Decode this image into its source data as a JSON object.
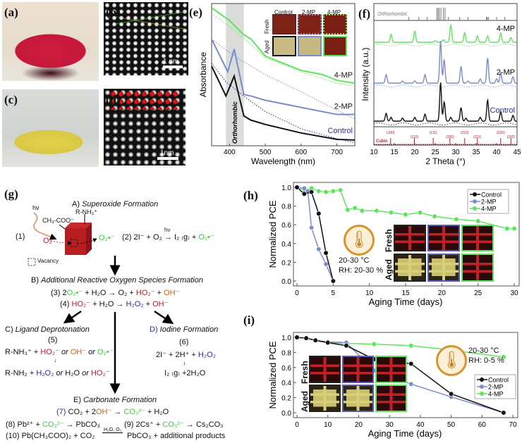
{
  "panel_labels": {
    "a": "(a)",
    "b": "(b)",
    "c": "(c)",
    "d": "(d)",
    "e": "(e)",
    "f": "(f)",
    "g": "(g)",
    "h": "(h)",
    "i": "(i)"
  },
  "photos": {
    "b_scale": "1 nm",
    "d_scale": "1nm"
  },
  "colors": {
    "control": "#111111",
    "mp2": "#7b8ccc",
    "mp4": "#5ee65a",
    "red": "#c0182a",
    "orange": "#d08a1e",
    "blue": "#2a2aa8"
  },
  "chart_data": [
    {
      "id": "e",
      "type": "line",
      "xlabel": "Wavelength (nm)",
      "ylabel": "Absorbance",
      "xlim": [
        350,
        750
      ],
      "xticks": [
        "400",
        "500",
        "600",
        "700"
      ],
      "xtick_values": [
        400,
        500,
        600,
        700
      ],
      "shaded_band": {
        "range": [
          390,
          440
        ],
        "label": "Orthorhombic"
      },
      "series": [
        {
          "name": "4-MP",
          "style": "solid",
          "color": "#5ee65a",
          "x": [
            350,
            400,
            440,
            460,
            500,
            600,
            660,
            700,
            750
          ],
          "y": [
            0.97,
            0.88,
            0.78,
            0.75,
            0.63,
            0.53,
            0.5,
            0.46,
            0.44
          ]
        },
        {
          "name": "2-MP",
          "style": "solid",
          "color": "#7b8ccc",
          "x": [
            350,
            395,
            413,
            440,
            460,
            500,
            600,
            700,
            750
          ],
          "y": [
            0.75,
            0.52,
            0.68,
            0.36,
            0.35,
            0.32,
            0.27,
            0.22,
            0.22
          ]
        },
        {
          "name": "Control",
          "style": "solid",
          "color": "#111111",
          "x": [
            350,
            390,
            413,
            440,
            460,
            500,
            600,
            700,
            750
          ],
          "y": [
            0.56,
            0.35,
            0.49,
            0.21,
            0.18,
            0.15,
            0.09,
            0.045,
            0.04
          ]
        },
        {
          "style": "dotted",
          "color": "#5ee65a",
          "x": [
            350,
            420,
            500,
            600,
            700,
            750
          ],
          "y": [
            0.93,
            0.8,
            0.62,
            0.52,
            0.44,
            0.42
          ]
        },
        {
          "style": "dotted",
          "color": "#7b8ccc",
          "x": [
            350,
            420,
            500,
            600,
            700,
            750
          ],
          "y": [
            0.75,
            0.62,
            0.5,
            0.38,
            0.25,
            0.19
          ]
        },
        {
          "style": "dotted",
          "color": "#2a2aa8",
          "x": [
            350,
            390,
            450,
            500,
            600,
            700,
            750
          ],
          "y": [
            0.58,
            0.45,
            0.33,
            0.24,
            0.12,
            0.05,
            0.02
          ]
        }
      ],
      "inset": {
        "columns": [
          "Control",
          "2-MP",
          "4-MP"
        ],
        "rows": [
          "Fresh",
          "Aged"
        ]
      }
    },
    {
      "id": "f",
      "type": "line",
      "xlabel": "2 Theta (°)",
      "ylabel": "Intensity (a.u.)",
      "xlim": [
        10,
        45
      ],
      "xticks": [
        "10",
        "15",
        "20",
        "25",
        "30",
        "35",
        "40",
        "45"
      ],
      "xtick_values": [
        10,
        15,
        20,
        25,
        30,
        35,
        40,
        45
      ],
      "reference_top": {
        "label": "Orthorhombic",
        "peaks": [
          18.5,
          21,
          23,
          25.4,
          25.7,
          26,
          26.4,
          27,
          27.4,
          28.2,
          31,
          33,
          37.5,
          37.7,
          38,
          40,
          42
        ]
      },
      "reference_bottom": {
        "label": "Cubic",
        "peaks": [
          14.1,
          19.9,
          24.5,
          28.6,
          32.2,
          35.3,
          41,
          43.5
        ],
        "hkl": [
          "(100)",
          "(110)",
          "(111)",
          "(200)",
          "(210)",
          "(211)",
          "(220)",
          "(202)"
        ]
      },
      "series": [
        {
          "name": "4-MP",
          "color": "#5ee65a",
          "peaks": [
            [
              14.2,
              0.25
            ],
            [
              20,
              0.35
            ],
            [
              25,
              0.05
            ],
            [
              27,
              0.08
            ],
            [
              28.8,
              0.55
            ],
            [
              32.2,
              0.3
            ],
            [
              35.3,
              0.2
            ],
            [
              37.8,
              0.2
            ],
            [
              41,
              0.3
            ],
            [
              43.5,
              0.15
            ]
          ]
        },
        {
          "name": "2-MP",
          "color": "#7b8ccc",
          "peaks": [
            [
              13,
              0.2
            ],
            [
              17,
              0.05
            ],
            [
              20,
              0.05
            ],
            [
              22.5,
              0.2
            ],
            [
              26.3,
              1.0
            ],
            [
              27.2,
              0.55
            ],
            [
              31.3,
              0.4
            ],
            [
              33,
              0.05
            ],
            [
              36,
              0.1
            ],
            [
              37.8,
              0.6
            ],
            [
              40,
              0.1
            ],
            [
              41,
              0.25
            ],
            [
              44,
              0.15
            ]
          ]
        },
        {
          "name": "Control",
          "color": "#111111",
          "peaks": [
            [
              13,
              0.2
            ],
            [
              14.2,
              0.1
            ],
            [
              17,
              0.08
            ],
            [
              20,
              0.1
            ],
            [
              22.5,
              0.18
            ],
            [
              26.3,
              1.0
            ],
            [
              27.2,
              0.5
            ],
            [
              28.8,
              0.1
            ],
            [
              31.3,
              0.35
            ],
            [
              32.5,
              0.08
            ],
            [
              36,
              0.1
            ],
            [
              37.8,
              0.55
            ],
            [
              41,
              0.25
            ],
            [
              44,
              0.15
            ]
          ]
        }
      ]
    },
    {
      "id": "h",
      "type": "line",
      "xlabel": "Aging Time (days)",
      "ylabel": "Normalized PCE",
      "xlim": [
        0,
        30
      ],
      "ylim": [
        0,
        1.0
      ],
      "xticks": [
        "0",
        "5",
        "10",
        "15",
        "20",
        "25",
        "30"
      ],
      "xtick_values": [
        0,
        5,
        10,
        15,
        20,
        25,
        30
      ],
      "yticks": [
        "0.0",
        "0.2",
        "0.4",
        "0.6",
        "0.8",
        "1.0"
      ],
      "ytick_values": [
        0,
        0.2,
        0.4,
        0.6,
        0.8,
        1.0
      ],
      "legend": "top-right",
      "condition": [
        "20-30 °C",
        "RH: 20-30 %"
      ],
      "inset": {
        "rows": [
          "Fresh",
          "Aged"
        ]
      },
      "series": [
        {
          "name": "Control",
          "color": "#111111",
          "x": [
            0,
            1,
            2,
            3,
            4,
            5
          ],
          "y": [
            1.0,
            0.93,
            0.95,
            0.72,
            0.3,
            0.0
          ]
        },
        {
          "name": "2-MP",
          "color": "#7b8ccc",
          "x": [
            0,
            1,
            1.5,
            2,
            3,
            4,
            5
          ],
          "y": [
            1.0,
            0.99,
            0.96,
            0.57,
            0.34,
            0.18,
            0.0
          ]
        },
        {
          "name": "4-MP",
          "color": "#5ee65a",
          "x": [
            0,
            1,
            2,
            3,
            4,
            5,
            6,
            7,
            8,
            9,
            11,
            13,
            15,
            17,
            19,
            22,
            25,
            29,
            30
          ],
          "y": [
            1.0,
            0.97,
            0.99,
            0.96,
            0.95,
            0.96,
            0.97,
            0.76,
            0.78,
            0.75,
            0.75,
            0.73,
            0.71,
            0.73,
            0.69,
            0.66,
            0.64,
            0.56,
            0.56
          ]
        }
      ]
    },
    {
      "id": "i",
      "type": "line",
      "xlabel": "Aging Time (days)",
      "ylabel": "Normalized PCE",
      "xlim": [
        0,
        70
      ],
      "ylim": [
        0,
        1.0
      ],
      "xticks": [
        "0",
        "10",
        "20",
        "30",
        "40",
        "50",
        "60",
        "70"
      ],
      "xtick_values": [
        0,
        10,
        20,
        30,
        40,
        50,
        60,
        70
      ],
      "yticks": [
        "0.0",
        "0.2",
        "0.4",
        "0.6",
        "0.8",
        "1.0"
      ],
      "ytick_values": [
        0,
        0.2,
        0.4,
        0.6,
        0.8,
        1.0
      ],
      "legend": "center-right",
      "condition": [
        "20-30 °C",
        "RH: 0-5 %"
      ],
      "inset": {
        "rows": [
          "Fresh",
          "Aged"
        ]
      },
      "series": [
        {
          "name": "Control",
          "color": "#111111",
          "x": [
            0,
            3,
            6,
            10,
            16,
            25,
            37,
            50,
            67
          ],
          "y": [
            1.0,
            0.99,
            0.96,
            0.93,
            0.89,
            0.71,
            0.65,
            0.25,
            0.0
          ]
        },
        {
          "name": "2-MP",
          "color": "#7b8ccc",
          "x": [
            0,
            3,
            6,
            10,
            16,
            25,
            37,
            50,
            67
          ],
          "y": [
            1.0,
            0.99,
            0.96,
            0.94,
            0.93,
            0.56,
            0.38,
            0.21,
            0.0
          ]
        },
        {
          "name": "4-MP",
          "color": "#5ee65a",
          "x": [
            0,
            3,
            6,
            10,
            16,
            25,
            37,
            50,
            67
          ],
          "y": [
            1.0,
            0.99,
            0.96,
            0.93,
            0.92,
            0.91,
            0.89,
            0.83,
            0.74
          ]
        }
      ]
    }
  ],
  "scheme": {
    "titles": {
      "A": [
        "A) ",
        "Superoxide Formation"
      ],
      "B": [
        "B) ",
        "Additional Reactive Oxygen Species Formation"
      ],
      "C": [
        "C) ",
        "Ligand Deprotonation"
      ],
      "D": [
        "D) ",
        "Iodine Formation"
      ],
      "E": [
        "E) ",
        "Carbonate Formation"
      ]
    },
    "labels": {
      "hv": "hν",
      "acetate": "CH₃-COO⁻",
      "amine": "R-NH₃⁺",
      "eq1": "(1)",
      "o2": "O₂",
      "superoxide": "O₂•⁻",
      "vacancy": "Vacancy",
      "eq5": "(5)",
      "eq6": "(6)",
      "arrow_small": "↓"
    },
    "equations": {
      "eq2": [
        [
          "(2)  2I⁻ + O₂ ",
          "k"
        ],
        [
          "→",
          "k"
        ],
        [
          " I₂ ₍g₎ + ",
          "k"
        ],
        [
          "O₂•⁻",
          "g"
        ]
      ],
      "eq2_hv": "hν",
      "eq3": [
        [
          "(3)  2",
          "k"
        ],
        [
          "O₂•⁻",
          "g"
        ],
        [
          " + H₂O → O₂ + ",
          "k"
        ],
        [
          "HO₂⁻",
          "r"
        ],
        [
          " + ",
          "k"
        ],
        [
          "OH⁻",
          "o"
        ]
      ],
      "eq4": [
        [
          "(4)  ",
          "k"
        ],
        [
          "HO₂⁻",
          "r"
        ],
        [
          " + H₂O → ",
          "k"
        ],
        [
          "H₂O₂",
          "b"
        ],
        [
          " + ",
          "k"
        ],
        [
          "OH⁻",
          "r"
        ]
      ],
      "eq5a": [
        [
          "R-NH₃⁺ + ",
          "k"
        ],
        [
          "HO₂⁻",
          "r"
        ],
        [
          " or ",
          "ki"
        ],
        [
          "OH⁻",
          "o"
        ],
        [
          " or ",
          "ki"
        ],
        [
          "O₂•⁻",
          "g"
        ]
      ],
      "eq5b": [
        [
          "R-NH₂ + ",
          "k"
        ],
        [
          "H₂O₂",
          "b"
        ],
        [
          " or ",
          "ki"
        ],
        [
          "H₂O",
          "k"
        ],
        [
          " or ",
          "ki"
        ],
        [
          "HO₂⁻",
          "r"
        ]
      ],
      "eq6a": [
        [
          "2I⁻ + 2H⁺ + ",
          "k"
        ],
        [
          "H₂O₂",
          "b"
        ]
      ],
      "eq6b": [
        [
          "I₂ ₍g₎ +2H₂O",
          "k"
        ]
      ],
      "eq7": [
        [
          "(7)",
          "b"
        ],
        [
          "  CO₂ +  2",
          "k"
        ],
        [
          "OH⁻",
          "o"
        ],
        [
          "  → ",
          "k"
        ],
        [
          "CO₃²⁻",
          "g"
        ],
        [
          " + H₂O",
          "k"
        ]
      ],
      "eq8": [
        [
          "(8)  Pb²⁺ + ",
          "k"
        ],
        [
          "CO₃²⁻",
          "g"
        ],
        [
          " → PbCO₃",
          "k"
        ]
      ],
      "eq9": [
        [
          "(9)  2Cs⁺ + ",
          "k"
        ],
        [
          "CO₃²⁻",
          "g"
        ],
        [
          " → Cs₂CO₃",
          "k"
        ]
      ],
      "eq10a": [
        [
          "(10)  Pb(CH₃COO)₂ + CO₂ ",
          "k"
        ]
      ],
      "eq10_cond": "H₂O, O₂",
      "eq10b": [
        [
          "PbCO₃ + additional products",
          "k"
        ]
      ]
    }
  }
}
